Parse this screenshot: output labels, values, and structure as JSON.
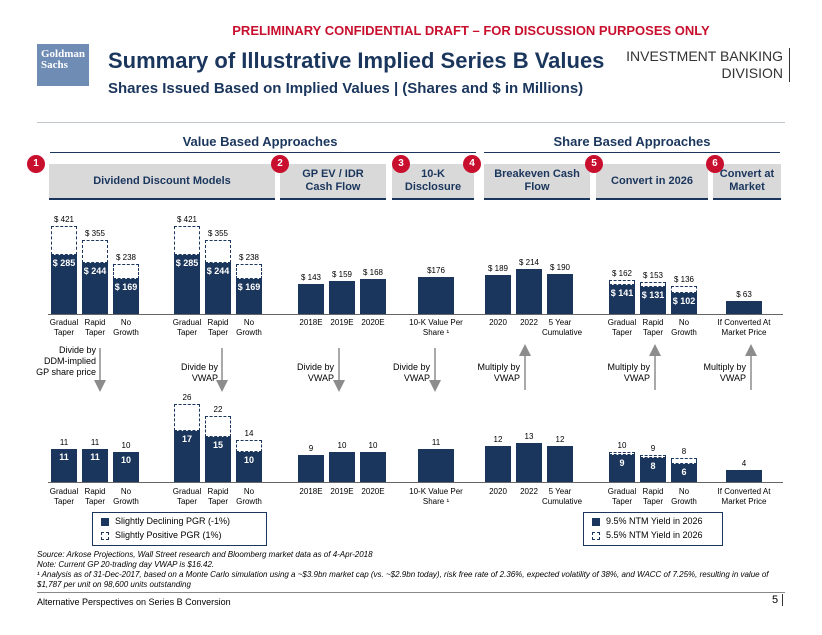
{
  "draft_banner": "PRELIMINARY CONFIDENTIAL DRAFT – FOR DISCUSSION PURPOSES ONLY",
  "logo": "Goldman Sachs",
  "title": "Summary of Illustrative Implied Series B Values",
  "subtitle": "Shares Issued Based on Implied Values | (Shares and $ in Millions)",
  "division": [
    "INVESTMENT BANKING",
    "DIVISION"
  ],
  "sections": {
    "value": "Value Based Approaches",
    "share": "Share Based Approaches"
  },
  "headers": [
    {
      "num": "1",
      "label": "Dividend Discount Models"
    },
    {
      "num": "2",
      "label": "GP EV / IDR Cash Flow"
    },
    {
      "num": "3",
      "label": "10-K Disclosure"
    },
    {
      "num": "4",
      "label": "Breakeven Cash Flow"
    },
    {
      "num": "5",
      "label": "Convert in 2026"
    },
    {
      "num": "6",
      "label": "Convert at Market"
    }
  ],
  "arrows": [
    "Divide by DDM-implied GP share price",
    "Divide by VWAP",
    "Divide by VWAP",
    "Divide by VWAP",
    "Multiply by VWAP",
    "Multiply by VWAP",
    "Multiply by VWAP"
  ],
  "chart_data": [
    {
      "type": "bar",
      "title": "Implied Series B Values ($ in Millions)",
      "groups": [
        {
          "categories": [
            "Gradual Taper",
            "Rapid Taper",
            "No Growth"
          ],
          "solid": [
            285,
            244,
            169
          ],
          "dashed": [
            421,
            355,
            238
          ],
          "solid_labels": [
            "$ 285",
            "$ 244",
            "$ 169"
          ],
          "dashed_labels": [
            "$ 421",
            "$ 355",
            "$ 238"
          ]
        },
        {
          "categories": [
            "Gradual Taper",
            "Rapid Taper",
            "No Growth"
          ],
          "solid": [
            285,
            244,
            169
          ],
          "dashed": [
            421,
            355,
            238
          ],
          "solid_labels": [
            "$ 285",
            "$ 244",
            "$ 169"
          ],
          "dashed_labels": [
            "$ 421",
            "$ 355",
            "$ 238"
          ]
        },
        {
          "categories": [
            "2018E",
            "2019E",
            "2020E"
          ],
          "solid": [
            143,
            159,
            168
          ],
          "solid_labels": [
            "$ 143",
            "$ 159",
            "$ 168"
          ]
        },
        {
          "categories": [
            "10-K Value Per Share ¹"
          ],
          "solid": [
            176
          ],
          "solid_labels": [
            "$176"
          ]
        },
        {
          "categories": [
            "2020",
            "2022",
            "5 Year Cumulative"
          ],
          "solid": [
            189,
            214,
            190
          ],
          "solid_labels": [
            "$ 189",
            "$ 214",
            "$ 190"
          ]
        },
        {
          "categories": [
            "Gradual Taper",
            "Rapid Taper",
            "No Growth"
          ],
          "solid": [
            141,
            131,
            102
          ],
          "dashed": [
            162,
            153,
            136
          ],
          "solid_labels": [
            "$ 141",
            "$ 131",
            "$ 102"
          ],
          "dashed_labels": [
            "$ 162",
            "$ 153",
            "$ 136"
          ]
        },
        {
          "categories": [
            "If Converted At Market Price"
          ],
          "solid": [
            63
          ],
          "solid_labels": [
            "$ 63"
          ]
        }
      ]
    },
    {
      "type": "bar",
      "title": "Shares Issued (Millions)",
      "groups": [
        {
          "categories": [
            "Gradual Taper",
            "Rapid Taper",
            "No Growth"
          ],
          "solid": [
            11,
            11,
            10
          ],
          "dashed": [
            11,
            11,
            10
          ],
          "solid_labels": [
            "11",
            "11",
            "10"
          ],
          "dashed_labels": [
            "11",
            "11",
            "10"
          ]
        },
        {
          "categories": [
            "Gradual Taper",
            "Rapid Taper",
            "No Growth"
          ],
          "solid": [
            17,
            15,
            10
          ],
          "dashed": [
            26,
            22,
            14
          ],
          "solid_labels": [
            "17",
            "15",
            "10"
          ],
          "dashed_labels": [
            "26",
            "22",
            "14"
          ]
        },
        {
          "categories": [
            "2018E",
            "2019E",
            "2020E"
          ],
          "solid": [
            9,
            10,
            10
          ],
          "solid_labels": [
            "9",
            "10",
            "10"
          ]
        },
        {
          "categories": [
            "10-K Value Per Share ¹"
          ],
          "solid": [
            11
          ],
          "solid_labels": [
            "11"
          ]
        },
        {
          "categories": [
            "2020",
            "2022",
            "5 Year Cumulative"
          ],
          "solid": [
            12,
            13,
            12
          ],
          "solid_labels": [
            "12",
            "13",
            "12"
          ]
        },
        {
          "categories": [
            "Gradual Taper",
            "Rapid Taper",
            "No Growth"
          ],
          "solid": [
            9,
            8,
            6
          ],
          "dashed": [
            10,
            9,
            8
          ],
          "solid_labels": [
            "9",
            "8",
            "6"
          ],
          "dashed_labels": [
            "10",
            "9",
            "8"
          ]
        },
        {
          "categories": [
            "If Converted At Market Price"
          ],
          "solid": [
            4
          ],
          "solid_labels": [
            "4"
          ]
        }
      ]
    }
  ],
  "legend_left": [
    "Slightly Declining PGR (-1%)",
    "Slightly Positive PGR (1%)"
  ],
  "legend_right": [
    "9.5% NTM Yield in 2026",
    "5.5% NTM Yield in 2026"
  ],
  "footnotes": [
    "Source: Arkose Projections, Wall Street research and Bloomberg market data as of 4-Apr-2018",
    "Note: Current GP 20-trading day VWAP is $16.42.",
    "¹ Analysis as of 31-Dec-2017, based on a Monte Carlo simulation using a ~$3.9bn market cap (vs. ~$2.9bn today), risk free rate of 2.36%, expected volatility of 38%, and WACC of 7.25%, resulting in value of $1,787 per unit on 98,600 units outstanding"
  ],
  "bottom_title": "Alternative Perspectives on Series B Conversion",
  "page_number": "5",
  "colors": {
    "navy": "#1b365d",
    "red": "#c8102e",
    "grey": "#d9d9d9"
  }
}
